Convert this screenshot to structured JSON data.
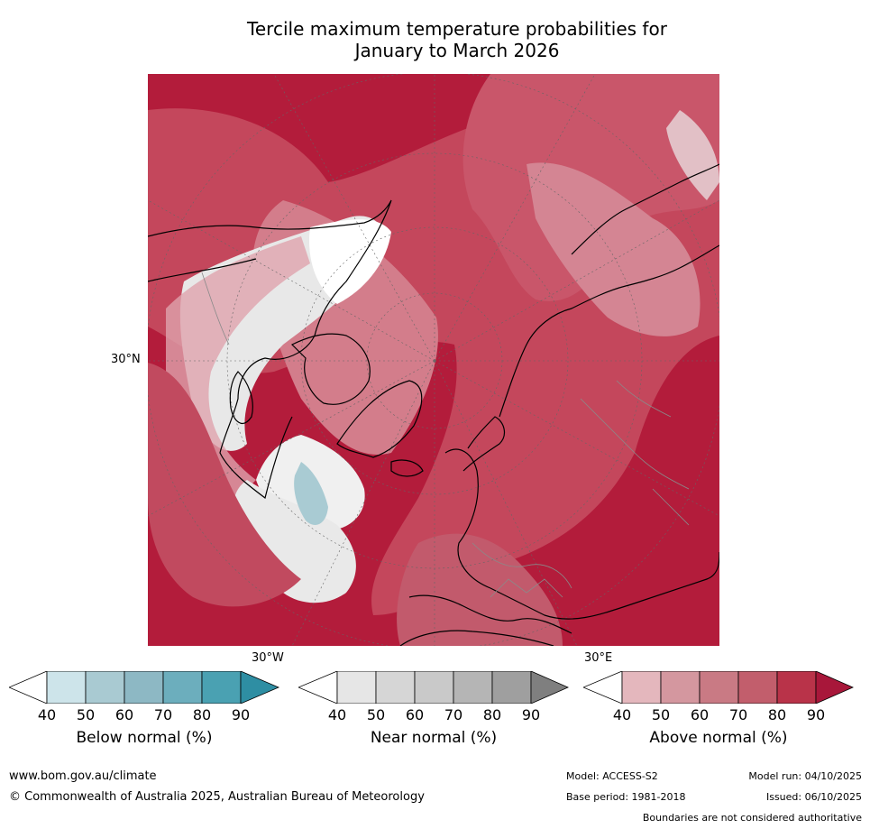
{
  "title_line1": "Tercile maximum temperature probabilities for",
  "title_line2": "January to March 2026",
  "map": {
    "labels": {
      "lat_30n": "30°N",
      "lon_30w": "30°W",
      "lon_30e": "30°E"
    },
    "colors": {
      "above_dark": "#b31c3b",
      "above_mid": "#c9566a",
      "above_light": "#dd9aa5",
      "near_light": "#e8e8e8",
      "below_light": "#a9cbd3",
      "land_border": "#000000",
      "country_border": "#8a8a8a"
    }
  },
  "colorbars": [
    {
      "title": "Below normal (%)",
      "ticks": [
        "40",
        "50",
        "60",
        "70",
        "80",
        "90"
      ],
      "colors": [
        "#ffffff",
        "#cde4ea",
        "#a9cad2",
        "#8db8c4",
        "#6caebd",
        "#4aa1b2",
        "#2e8ea3"
      ]
    },
    {
      "title": "Near normal (%)",
      "ticks": [
        "40",
        "50",
        "60",
        "70",
        "80",
        "90"
      ],
      "colors": [
        "#ffffff",
        "#e6e6e6",
        "#d6d6d6",
        "#c9c9c9",
        "#b5b5b5",
        "#9f9f9f",
        "#7f7f7f"
      ]
    },
    {
      "title": "Above normal (%)",
      "ticks": [
        "40",
        "50",
        "60",
        "70",
        "80",
        "90"
      ],
      "colors": [
        "#ffffff",
        "#e4b7bd",
        "#d4979f",
        "#c97a84",
        "#c25e6c",
        "#b93349",
        "#a8173a"
      ]
    }
  ],
  "footer": {
    "url": "www.bom.gov.au/climate",
    "copyright": "© Commonwealth of Australia 2025, Australian Bureau of Meteorology",
    "model": "Model: ACCESS-S2",
    "model_run": "Model run: 04/10/2025",
    "base_period": "Base period: 1981-2018",
    "issued": "Issued: 06/10/2025",
    "disclaimer": "Boundaries are not considered authoritative"
  }
}
